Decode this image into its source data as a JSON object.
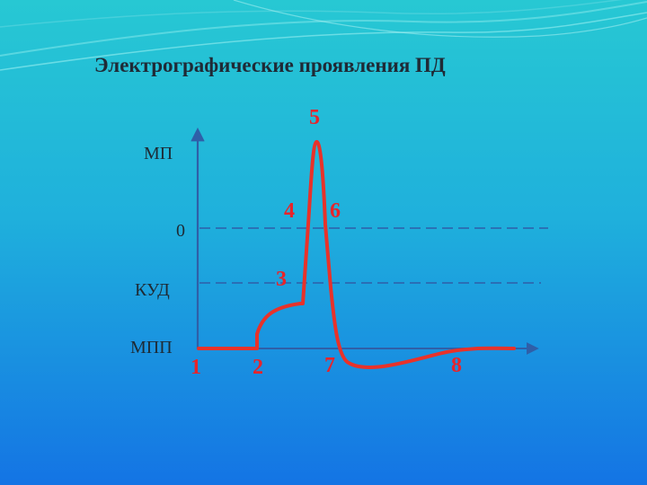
{
  "slide": {
    "title": "Электрографические проявления ПД",
    "colors": {
      "background_top": "#22c9d4",
      "background_bottom": "#1576e6",
      "axis": "#2f5fa8",
      "dashed_line": "#2f5fa8",
      "curve": "#e8322a",
      "numbers": "#e8242a"
    }
  },
  "axis_labels": {
    "mp": "МП",
    "zero": "0",
    "kud": "КУД",
    "mpp": "МПП"
  },
  "phase_numbers": [
    "1",
    "2",
    "3",
    "4",
    "5",
    "6",
    "7",
    "8"
  ]
}
